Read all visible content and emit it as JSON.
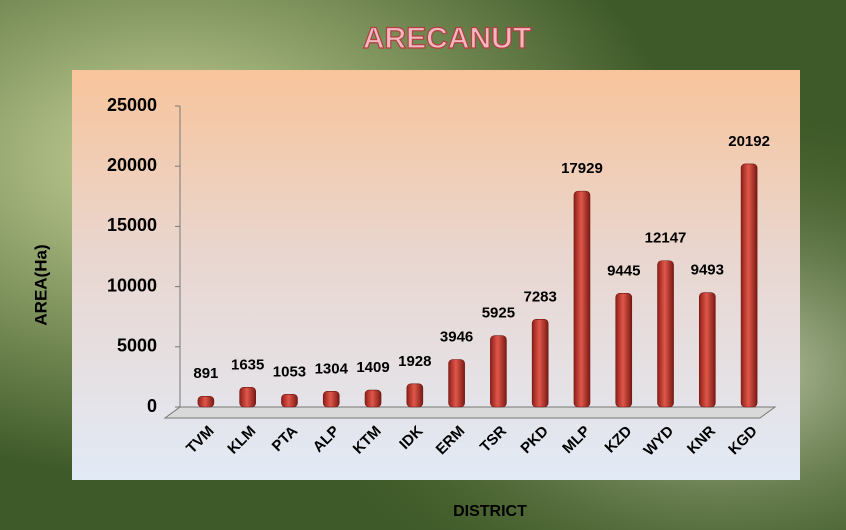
{
  "chart_data": {
    "type": "bar",
    "title": "ARECANUT",
    "x_label": "DISTRICT",
    "y_label": "AREA(Ha)",
    "categories": [
      "TVM",
      "KLM",
      "PTA",
      "ALP",
      "KTM",
      "IDK",
      "ERM",
      "TSR",
      "PKD",
      "MLP",
      "KZD",
      "WYD",
      "KNR",
      "KGD"
    ],
    "values": [
      891,
      1635,
      1053,
      1304,
      1409,
      1928,
      3946,
      5925,
      7283,
      17929,
      9445,
      12147,
      9493,
      20192
    ],
    "color": "#c0392b",
    "ylim": [
      0,
      25000
    ],
    "yticks": [
      0,
      5000,
      10000,
      15000,
      20000,
      25000
    ],
    "grid": false
  }
}
